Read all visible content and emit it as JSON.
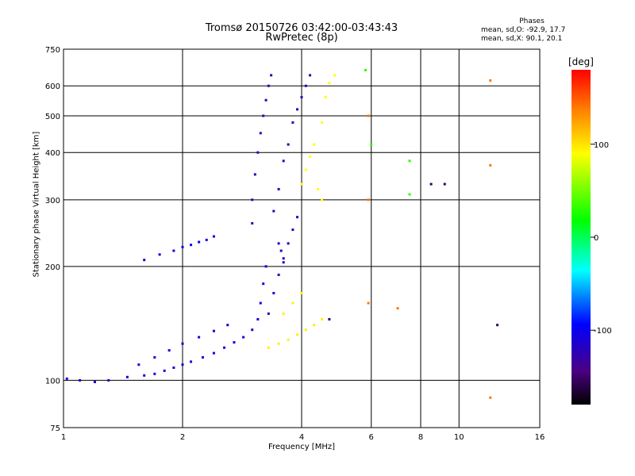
{
  "chart_data": {
    "type": "scatter",
    "title": "Tromsø 20150726 03:42:00-03:43:43",
    "subtitle": "RwPretec (8p)",
    "xlabel": "Frequency [MHz]",
    "ylabel": "Stationary phase Virtual Height [km]",
    "x_scale": "log",
    "y_scale": "log",
    "xlim": [
      1,
      16
    ],
    "ylim": [
      75,
      750
    ],
    "x_ticks": [
      1,
      2,
      4,
      6,
      8,
      10,
      16
    ],
    "y_ticks": [
      75,
      100,
      200,
      300,
      400,
      500,
      600,
      750
    ],
    "grid": true,
    "colorbar": {
      "label": "[deg]",
      "range": [
        -180,
        180
      ],
      "ticks": [
        -100,
        0,
        100
      ]
    },
    "stats": {
      "heading": "Phases",
      "o": "mean, sd,O: -92.9, 17.7",
      "x": "mean, sd,X:  90.1, 20.1"
    },
    "series": [
      {
        "phase": -110,
        "points": [
          [
            1.02,
            101
          ],
          [
            1.1,
            100
          ],
          [
            1.2,
            99
          ],
          [
            1.3,
            100
          ],
          [
            1.45,
            102
          ],
          [
            1.6,
            103
          ],
          [
            1.7,
            104
          ],
          [
            1.8,
            106
          ],
          [
            1.9,
            108
          ],
          [
            2.0,
            110
          ],
          [
            2.1,
            112
          ],
          [
            2.25,
            115
          ],
          [
            2.4,
            118
          ],
          [
            2.55,
            122
          ],
          [
            2.7,
            126
          ],
          [
            2.85,
            130
          ],
          [
            3.0,
            136
          ],
          [
            3.1,
            145
          ],
          [
            3.15,
            160
          ],
          [
            3.2,
            180
          ],
          [
            3.25,
            200
          ]
        ]
      },
      {
        "phase": -115,
        "points": [
          [
            1.55,
            110
          ],
          [
            1.7,
            115
          ],
          [
            1.85,
            120
          ],
          [
            2.0,
            125
          ],
          [
            2.2,
            130
          ],
          [
            2.4,
            135
          ],
          [
            2.6,
            140
          ]
        ]
      },
      {
        "phase": -105,
        "points": [
          [
            1.6,
            208
          ],
          [
            1.75,
            215
          ],
          [
            1.9,
            220
          ],
          [
            2.0,
            225
          ],
          [
            2.1,
            228
          ],
          [
            2.2,
            232
          ],
          [
            2.3,
            235
          ],
          [
            2.4,
            240
          ]
        ]
      },
      {
        "phase": -125,
        "points": [
          [
            3.0,
            260
          ],
          [
            3.0,
            300
          ],
          [
            3.05,
            350
          ],
          [
            3.1,
            400
          ],
          [
            3.15,
            450
          ],
          [
            3.2,
            500
          ],
          [
            3.25,
            550
          ],
          [
            3.3,
            600
          ],
          [
            3.35,
            640
          ],
          [
            3.4,
            280
          ],
          [
            3.5,
            320
          ],
          [
            3.6,
            380
          ],
          [
            3.7,
            420
          ],
          [
            3.8,
            480
          ],
          [
            3.9,
            520
          ],
          [
            4.0,
            560
          ],
          [
            4.1,
            600
          ],
          [
            4.2,
            640
          ]
        ]
      },
      {
        "phase": -120,
        "points": [
          [
            3.3,
            150
          ],
          [
            3.4,
            170
          ],
          [
            3.5,
            190
          ],
          [
            3.6,
            210
          ],
          [
            3.7,
            230
          ],
          [
            3.8,
            250
          ],
          [
            3.9,
            270
          ],
          [
            3.5,
            230
          ],
          [
            3.55,
            220
          ],
          [
            3.6,
            205
          ]
        ]
      },
      {
        "phase": 95,
        "points": [
          [
            3.3,
            122
          ],
          [
            3.5,
            125
          ],
          [
            3.7,
            128
          ],
          [
            3.9,
            132
          ],
          [
            4.1,
            136
          ],
          [
            4.3,
            140
          ],
          [
            4.5,
            145
          ],
          [
            3.6,
            150
          ],
          [
            3.8,
            160
          ],
          [
            4.0,
            170
          ]
        ]
      },
      {
        "phase": 90,
        "points": [
          [
            4.0,
            330
          ],
          [
            4.1,
            360
          ],
          [
            4.2,
            390
          ],
          [
            4.3,
            420
          ],
          [
            4.5,
            480
          ],
          [
            4.6,
            560
          ],
          [
            4.7,
            610
          ],
          [
            4.85,
            640
          ],
          [
            4.4,
            320
          ],
          [
            4.5,
            300
          ]
        ]
      },
      {
        "phase": 140,
        "points": [
          [
            5.9,
            500
          ],
          [
            5.9,
            300
          ],
          [
            5.9,
            160
          ],
          [
            7.0,
            155
          ],
          [
            12.0,
            620
          ],
          [
            12.0,
            370
          ],
          [
            12.0,
            90
          ]
        ]
      },
      {
        "phase": 30,
        "points": [
          [
            6.0,
            420
          ],
          [
            7.5,
            380
          ],
          [
            7.5,
            310
          ],
          [
            5.8,
            660
          ]
        ]
      },
      {
        "phase": -160,
        "points": [
          [
            8.5,
            330
          ],
          [
            9.2,
            330
          ],
          [
            12.5,
            140
          ],
          [
            4.7,
            145
          ]
        ]
      }
    ]
  }
}
